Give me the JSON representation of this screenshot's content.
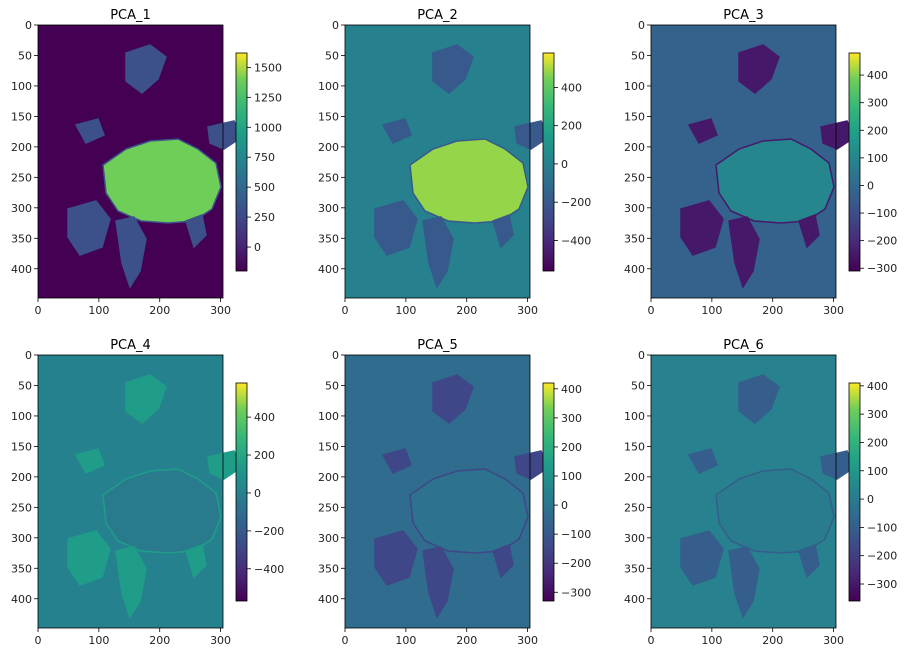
{
  "chart_data": [
    {
      "type": "heatmap",
      "title": "PCA_1",
      "xlim": [
        0,
        304
      ],
      "ylim": [
        448,
        0
      ],
      "xticks": [
        "0",
        "100",
        "200",
        "300"
      ],
      "yticks": [
        "0",
        "50",
        "100",
        "150",
        "200",
        "250",
        "300",
        "350",
        "400"
      ],
      "colorbar": {
        "min": -200,
        "max": 1620,
        "ticks": [
          "0",
          "250",
          "500",
          "750",
          "1000",
          "1250",
          "1500"
        ]
      },
      "ocean_value": -200,
      "land_value": 300,
      "ice_value": 1400,
      "colormap": "viridis"
    },
    {
      "type": "heatmap",
      "title": "PCA_2",
      "xlim": [
        0,
        304
      ],
      "ylim": [
        448,
        0
      ],
      "xticks": [
        "0",
        "100",
        "200",
        "300"
      ],
      "yticks": [
        "0",
        "50",
        "100",
        "150",
        "200",
        "250",
        "300",
        "350",
        "400"
      ],
      "colorbar": {
        "min": -560,
        "max": 580,
        "ticks": [
          "−400",
          "−200",
          "0",
          "200",
          "400"
        ]
      },
      "ocean_value": 0,
      "land_value": -200,
      "ice_value": 480,
      "colormap": "viridis"
    },
    {
      "type": "heatmap",
      "title": "PCA_3",
      "xlim": [
        0,
        304
      ],
      "ylim": [
        448,
        0
      ],
      "xticks": [
        "0",
        "100",
        "200",
        "300"
      ],
      "yticks": [
        "0",
        "50",
        "100",
        "150",
        "200",
        "250",
        "300",
        "350",
        "400"
      ],
      "colorbar": {
        "min": -310,
        "max": 480,
        "ticks": [
          "−300",
          "−200",
          "−100",
          "0",
          "100",
          "200",
          "300",
          "400"
        ]
      },
      "ocean_value": -30,
      "land_value": -250,
      "ice_value": 100,
      "colormap": "viridis"
    },
    {
      "type": "heatmap",
      "title": "PCA_4",
      "xlim": [
        0,
        304
      ],
      "ylim": [
        448,
        0
      ],
      "xticks": [
        "0",
        "100",
        "200",
        "300"
      ],
      "yticks": [
        "0",
        "50",
        "100",
        "150",
        "200",
        "250",
        "300",
        "350",
        "400"
      ],
      "colorbar": {
        "min": -570,
        "max": 580,
        "ticks": [
          "−400",
          "−200",
          "0",
          "200",
          "400"
        ]
      },
      "ocean_value": 0,
      "land_value": 150,
      "ice_value": -40,
      "colormap": "viridis"
    },
    {
      "type": "heatmap",
      "title": "PCA_5",
      "xlim": [
        0,
        304
      ],
      "ylim": [
        448,
        0
      ],
      "xticks": [
        "0",
        "100",
        "200",
        "300"
      ],
      "yticks": [
        "0",
        "50",
        "100",
        "150",
        "200",
        "250",
        "300",
        "350",
        "400"
      ],
      "colorbar": {
        "min": -330,
        "max": 420,
        "ticks": [
          "−300",
          "−200",
          "−100",
          "0",
          "100",
          "200",
          "300",
          "400"
        ]
      },
      "ocean_value": -30,
      "land_value": -150,
      "ice_value": -10,
      "colormap": "viridis"
    },
    {
      "type": "heatmap",
      "title": "PCA_6",
      "xlim": [
        0,
        304
      ],
      "ylim": [
        448,
        0
      ],
      "xticks": [
        "0",
        "100",
        "200",
        "300"
      ],
      "yticks": [
        "0",
        "50",
        "100",
        "150",
        "200",
        "250",
        "300",
        "350",
        "400"
      ],
      "colorbar": {
        "min": -360,
        "max": 410,
        "ticks": [
          "−300",
          "−200",
          "−100",
          "0",
          "100",
          "200",
          "300",
          "400"
        ]
      },
      "ocean_value": 20,
      "land_value": -100,
      "ice_value": 0,
      "colormap": "viridis"
    }
  ]
}
